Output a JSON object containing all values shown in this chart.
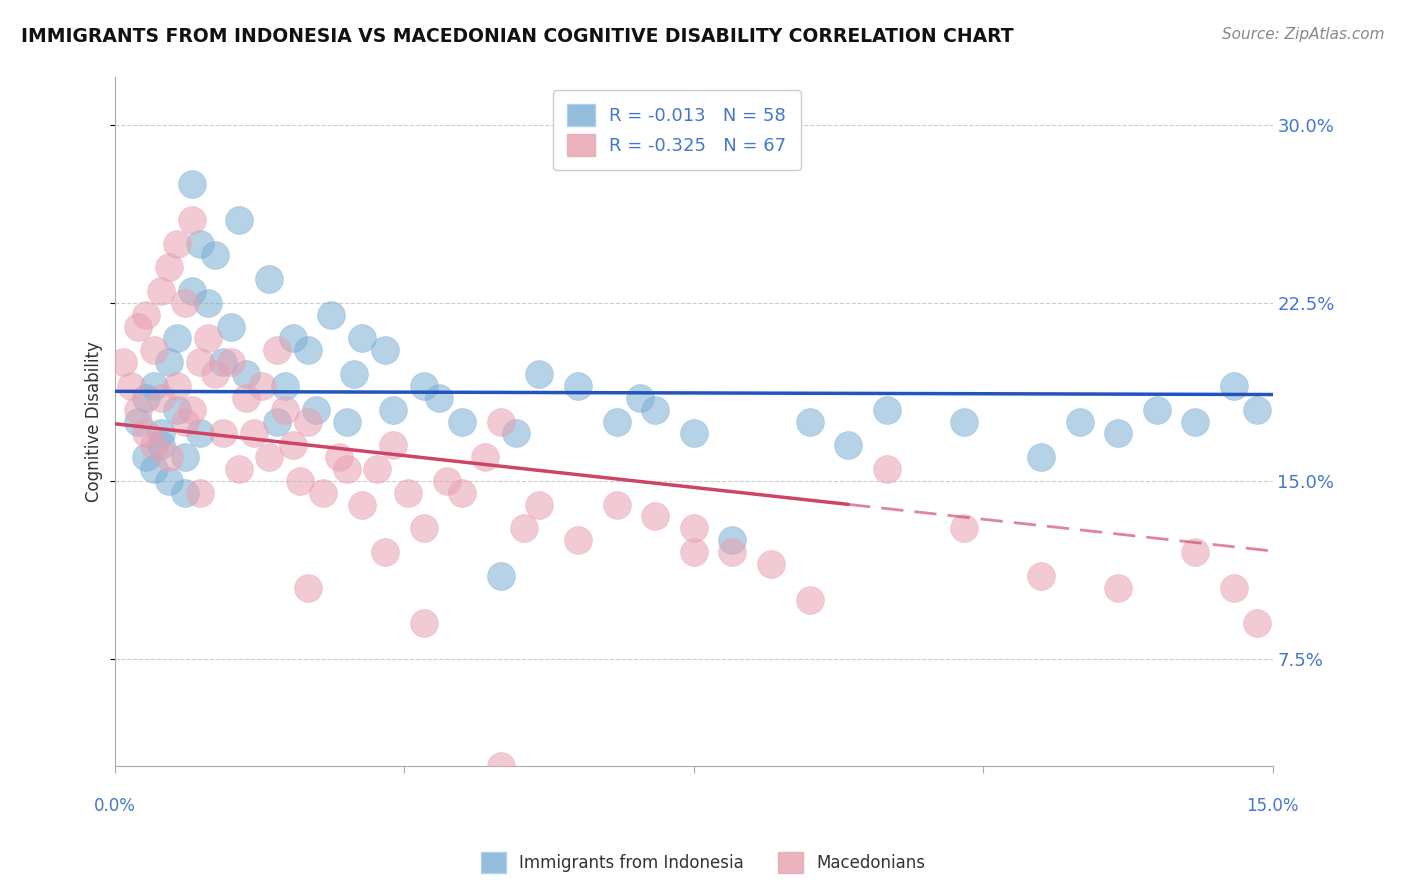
{
  "title": "IMMIGRANTS FROM INDONESIA VS MACEDONIAN COGNITIVE DISABILITY CORRELATION CHART",
  "source": "Source: ZipAtlas.com",
  "ylabel": "Cognitive Disability",
  "x_label_0": "0.0%",
  "x_label_15": "15.0%",
  "y_ticks": [
    7.5,
    15.0,
    22.5,
    30.0
  ],
  "y_tick_labels": [
    "7.5%",
    "15.0%",
    "22.5%",
    "30.0%"
  ],
  "xlim": [
    0.0,
    15.0
  ],
  "ylim": [
    3.0,
    32.0
  ],
  "legend_label_1": "R = -0.013   N = 58",
  "legend_label_2": "R = -0.325   N = 67",
  "legend_bottom_1": "Immigrants from Indonesia",
  "legend_bottom_2": "Macedonians",
  "blue_color": "#7aadd4",
  "pink_color": "#e8a0b0",
  "blue_line_color": "#2255bb",
  "pink_line_color": "#cc4466",
  "R1": -0.013,
  "N1": 58,
  "R2": -0.325,
  "N2": 67,
  "indonesia_x": [
    0.3,
    0.4,
    0.4,
    0.5,
    0.5,
    0.6,
    0.6,
    0.7,
    0.7,
    0.8,
    0.8,
    0.9,
    0.9,
    1.0,
    1.0,
    1.1,
    1.1,
    1.2,
    1.3,
    1.4,
    1.5,
    1.6,
    1.7,
    2.0,
    2.1,
    2.2,
    2.3,
    2.5,
    2.6,
    2.8,
    3.0,
    3.1,
    3.2,
    3.5,
    3.6,
    4.0,
    4.2,
    4.5,
    5.0,
    5.2,
    5.5,
    6.0,
    6.5,
    6.8,
    7.0,
    7.5,
    8.0,
    9.0,
    9.5,
    10.0,
    11.0,
    12.0,
    12.5,
    13.0,
    13.5,
    14.0,
    14.5,
    14.8
  ],
  "indonesia_y": [
    17.5,
    16.0,
    18.5,
    15.5,
    19.0,
    16.5,
    17.0,
    20.0,
    15.0,
    18.0,
    21.0,
    14.5,
    16.0,
    23.0,
    27.5,
    25.0,
    17.0,
    22.5,
    24.5,
    20.0,
    21.5,
    26.0,
    19.5,
    23.5,
    17.5,
    19.0,
    21.0,
    20.5,
    18.0,
    22.0,
    17.5,
    19.5,
    21.0,
    20.5,
    18.0,
    19.0,
    18.5,
    17.5,
    11.0,
    17.0,
    19.5,
    19.0,
    17.5,
    18.5,
    18.0,
    17.0,
    12.5,
    17.5,
    16.5,
    18.0,
    17.5,
    16.0,
    17.5,
    17.0,
    18.0,
    17.5,
    19.0,
    18.0
  ],
  "macedonian_x": [
    0.1,
    0.2,
    0.3,
    0.3,
    0.4,
    0.4,
    0.5,
    0.5,
    0.6,
    0.6,
    0.7,
    0.7,
    0.8,
    0.8,
    0.9,
    0.9,
    1.0,
    1.0,
    1.1,
    1.1,
    1.2,
    1.3,
    1.4,
    1.5,
    1.6,
    1.7,
    1.8,
    1.9,
    2.0,
    2.1,
    2.2,
    2.3,
    2.4,
    2.5,
    2.7,
    2.9,
    3.0,
    3.2,
    3.4,
    3.6,
    3.8,
    4.0,
    4.3,
    4.5,
    4.8,
    5.0,
    5.3,
    5.5,
    6.0,
    6.5,
    7.0,
    7.5,
    8.0,
    8.5,
    9.0,
    10.0,
    11.0,
    12.0,
    13.0,
    14.0,
    14.5,
    14.8,
    5.0,
    3.5,
    4.0,
    2.5,
    7.5
  ],
  "macedonian_y": [
    20.0,
    19.0,
    18.0,
    21.5,
    17.0,
    22.0,
    16.5,
    20.5,
    23.0,
    18.5,
    24.0,
    16.0,
    25.0,
    19.0,
    17.5,
    22.5,
    26.0,
    18.0,
    20.0,
    14.5,
    21.0,
    19.5,
    17.0,
    20.0,
    15.5,
    18.5,
    17.0,
    19.0,
    16.0,
    20.5,
    18.0,
    16.5,
    15.0,
    17.5,
    14.5,
    16.0,
    15.5,
    14.0,
    15.5,
    16.5,
    14.5,
    13.0,
    15.0,
    14.5,
    16.0,
    17.5,
    13.0,
    14.0,
    12.5,
    14.0,
    13.5,
    13.0,
    12.0,
    11.5,
    10.0,
    15.5,
    13.0,
    11.0,
    10.5,
    12.0,
    10.5,
    9.0,
    3.0,
    12.0,
    9.0,
    10.5,
    12.0
  ]
}
